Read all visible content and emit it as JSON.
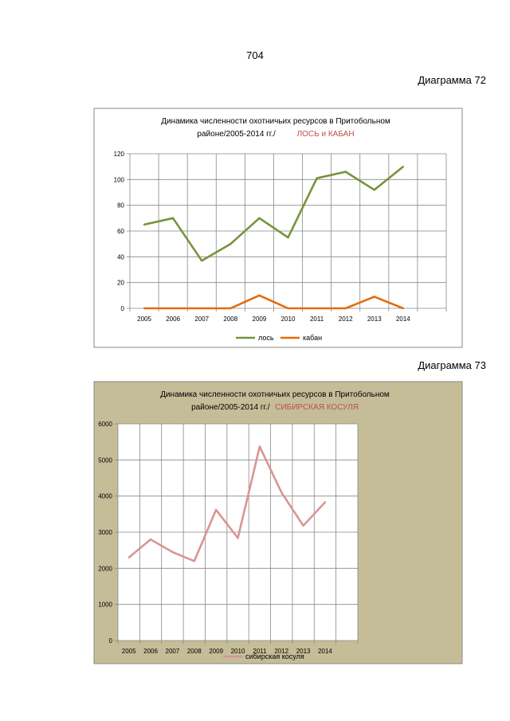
{
  "page": {
    "number": "704",
    "diagram_72_label": "Диаграмма 72",
    "diagram_73_label": "Диаграмма 73"
  },
  "colors": {
    "moose": "#77933c",
    "boar": "#e46c0a",
    "roe": "#d99594",
    "title_accent": "#c0504d",
    "chart2_bg": "#c4bd97",
    "grid": "#888888"
  },
  "chart_data": [
    {
      "type": "line",
      "title_line1": "Динамика численности охотничьих ресурсов в Притобольном",
      "title_line2": "районе/2005-2014 гг./",
      "title_accent": "ЛОСЬ и КАБАН",
      "categories": [
        "2005",
        "2006",
        "2007",
        "2008",
        "2009",
        "2010",
        "2011",
        "2012",
        "2013",
        "2014"
      ],
      "series": [
        {
          "name": "лось",
          "values": [
            65,
            70,
            37,
            50,
            70,
            55,
            101,
            106,
            92,
            110
          ]
        },
        {
          "name": "кабан",
          "values": [
            0,
            0,
            0,
            0,
            10,
            0,
            0,
            0,
            9,
            0
          ]
        }
      ],
      "ylim": [
        0,
        120
      ],
      "yticks": [
        "0",
        "20",
        "40",
        "60",
        "80",
        "100",
        "120"
      ],
      "grid": true,
      "legend": "bottom"
    },
    {
      "type": "line",
      "title_line1": "Динамика численности  охотничьих ресурсов    в Притобольном",
      "title_line2": "районе/2005-2014  гг./",
      "title_accent": "СИБИРСКАЯ  КОСУЛЯ",
      "categories": [
        "2005",
        "2006",
        "2007",
        "2008",
        "2009",
        "2010",
        "2011",
        "2012",
        "2013",
        "2014"
      ],
      "series": [
        {
          "name": "сибирская косуля",
          "values": [
            2300,
            2800,
            2450,
            2200,
            3620,
            2840,
            5370,
            4100,
            3180,
            3830
          ]
        }
      ],
      "ylim": [
        0,
        6000
      ],
      "yticks": [
        "0",
        "1000",
        "2000",
        "3000",
        "4000",
        "5000",
        "6000"
      ],
      "grid": true,
      "legend": "bottom"
    }
  ]
}
